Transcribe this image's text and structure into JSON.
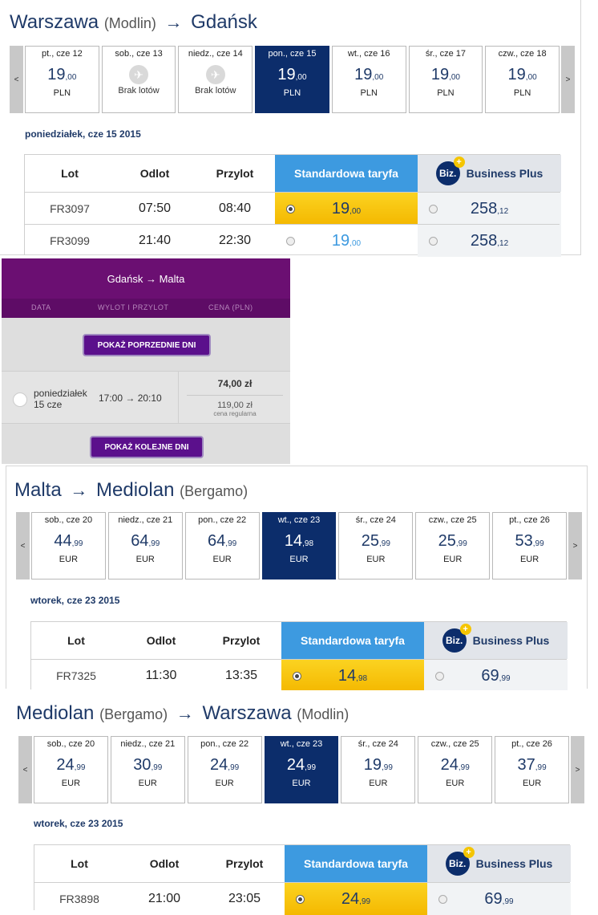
{
  "leg1": {
    "title": {
      "from": "Warszawa",
      "from_sub": "(Modlin)",
      "arrow": "→",
      "to": "Gdańsk",
      "to_sub": ""
    },
    "prev": "<",
    "next": ">",
    "days": [
      {
        "label": "pt., cze 12",
        "price": "19",
        "cents": ",00",
        "currency": "PLN"
      },
      {
        "label": "sob., cze 13",
        "noflight": "Brak lotów"
      },
      {
        "label": "niedz., cze 14",
        "noflight": "Brak lotów"
      },
      {
        "label": "pon., cze 15",
        "price": "19",
        "cents": ",00",
        "currency": "PLN",
        "selected": true
      },
      {
        "label": "wt., cze 16",
        "price": "19",
        "cents": ",00",
        "currency": "PLN"
      },
      {
        "label": "śr., cze 17",
        "price": "19",
        "cents": ",00",
        "currency": "PLN"
      },
      {
        "label": "czw., cze 18",
        "price": "19",
        "cents": ",00",
        "currency": "PLN"
      }
    ],
    "date_heading": "poniedziałek, cze 15 2015",
    "headers": {
      "flight": "Lot",
      "depart": "Odlot",
      "arrive": "Przylot",
      "standard": "Standardowa taryfa",
      "biz_logo": "Biz.",
      "business": "Business Plus"
    },
    "flights": [
      {
        "flight": "FR3097",
        "depart": "07:50",
        "arrive": "08:40",
        "std": "19",
        "std_c": ",00",
        "biz": "258",
        "biz_c": ",12",
        "selected": true
      },
      {
        "flight": "FR3099",
        "depart": "21:40",
        "arrive": "22:30",
        "std": "19",
        "std_c": ",00",
        "biz": "258",
        "biz_c": ",12",
        "selected": false
      }
    ]
  },
  "wizz": {
    "route": "Gdańsk → Malta",
    "cols": {
      "date": "DATA",
      "times": "WYLOT I PRZYLOT",
      "price": "CENA (PLN)"
    },
    "prev_btn": "POKAŻ POPRZEDNIE DNI",
    "next_btn": "POKAŻ KOLEJNE DNI",
    "day": "poniedziałek",
    "day2": "15 cze",
    "times": "17:00 → 20:10",
    "price": "74,00 zł",
    "regular": "119,00 zł",
    "regular_label": "cena regularna"
  },
  "leg3": {
    "title": {
      "from": "Malta",
      "from_sub": "",
      "arrow": "→",
      "to": "Mediolan",
      "to_sub": "(Bergamo)"
    },
    "prev": "<",
    "next": ">",
    "days": [
      {
        "label": "sob., cze 20",
        "price": "44",
        "cents": ",99",
        "currency": "EUR"
      },
      {
        "label": "niedz., cze 21",
        "price": "64",
        "cents": ",99",
        "currency": "EUR"
      },
      {
        "label": "pon., cze 22",
        "price": "64",
        "cents": ",99",
        "currency": "EUR"
      },
      {
        "label": "wt., cze 23",
        "price": "14",
        "cents": ",98",
        "currency": "EUR",
        "selected": true
      },
      {
        "label": "śr., cze 24",
        "price": "25",
        "cents": ",99",
        "currency": "EUR"
      },
      {
        "label": "czw., cze 25",
        "price": "25",
        "cents": ",99",
        "currency": "EUR"
      },
      {
        "label": "pt., cze 26",
        "price": "53",
        "cents": ",99",
        "currency": "EUR"
      }
    ],
    "date_heading": "wtorek, cze 23 2015",
    "headers": {
      "flight": "Lot",
      "depart": "Odlot",
      "arrive": "Przylot",
      "standard": "Standardowa taryfa",
      "biz_logo": "Biz.",
      "business": "Business Plus"
    },
    "flights": [
      {
        "flight": "FR7325",
        "depart": "11:30",
        "arrive": "13:35",
        "std": "14",
        "std_c": ",98",
        "biz": "69",
        "biz_c": ",99",
        "selected": true
      }
    ]
  },
  "leg4": {
    "title": {
      "from": "Mediolan",
      "from_sub": "(Bergamo)",
      "arrow": "→",
      "to": "Warszawa",
      "to_sub": "(Modlin)"
    },
    "prev": "<",
    "next": ">",
    "days": [
      {
        "label": "sob., cze 20",
        "price": "24",
        "cents": ",99",
        "currency": "EUR"
      },
      {
        "label": "niedz., cze 21",
        "price": "30",
        "cents": ",99",
        "currency": "EUR"
      },
      {
        "label": "pon., cze 22",
        "price": "24",
        "cents": ",99",
        "currency": "EUR"
      },
      {
        "label": "wt., cze 23",
        "price": "24",
        "cents": ",99",
        "currency": "EUR",
        "selected": true
      },
      {
        "label": "śr., cze 24",
        "price": "19",
        "cents": ",99",
        "currency": "EUR"
      },
      {
        "label": "czw., cze 25",
        "price": "24",
        "cents": ",99",
        "currency": "EUR"
      },
      {
        "label": "pt., cze 26",
        "price": "37",
        "cents": ",99",
        "currency": "EUR"
      }
    ],
    "date_heading": "wtorek, cze 23 2015",
    "headers": {
      "flight": "Lot",
      "depart": "Odlot",
      "arrive": "Przylot",
      "standard": "Standardowa taryfa",
      "biz_logo": "Biz.",
      "business": "Business Plus"
    },
    "flights": [
      {
        "flight": "FR3898",
        "depart": "21:00",
        "arrive": "23:05",
        "std": "24",
        "std_c": ",99",
        "biz": "69",
        "biz_c": ",99",
        "selected": true
      }
    ]
  },
  "colors": {
    "navy": "#0c2d6b",
    "blue": "#3d9ae0",
    "yellow": "#f4b800",
    "purple": "#6b0f72"
  }
}
